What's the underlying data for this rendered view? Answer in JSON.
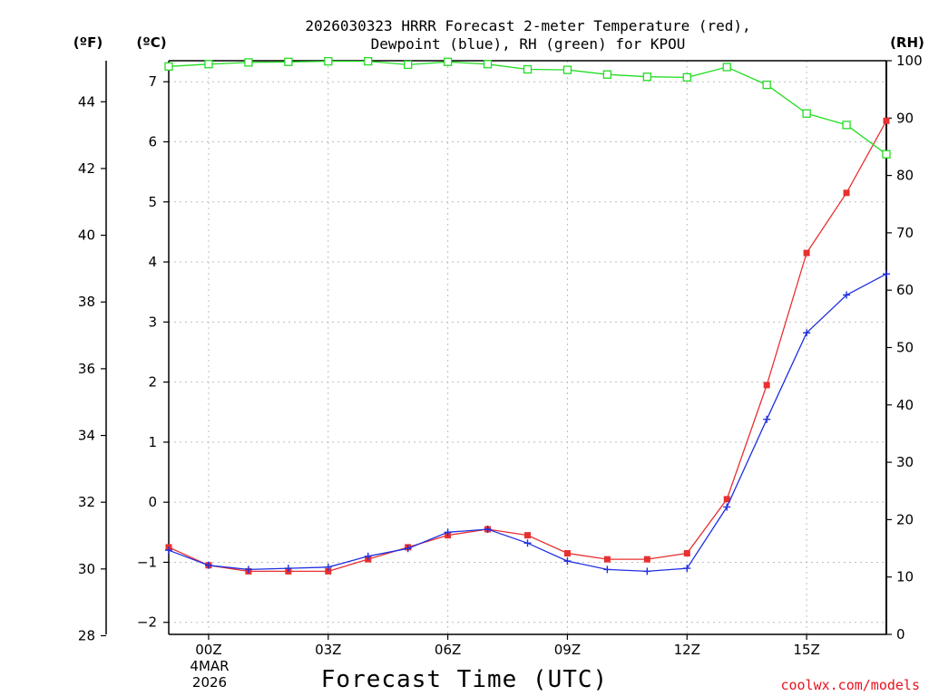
{
  "chart_data": {
    "type": "line",
    "title_line1": "2026030323 HRRR Forecast 2-meter Temperature (red),",
    "title_line2": "Dewpoint (blue), RH (green) for KPOU",
    "xlabel": "Forecast Time (UTC)",
    "credit": "coolwx.com/models",
    "date_label_line1": "4MAR",
    "date_label_line2": "2026",
    "units": {
      "fahrenheit": "(ºF)",
      "celsius": "(ºC)",
      "rh": "(RH)"
    },
    "x_hours": [
      -1,
      0,
      1,
      2,
      3,
      4,
      5,
      6,
      7,
      8,
      9,
      10,
      11,
      12,
      13,
      14,
      15,
      16,
      17
    ],
    "x_ticks": [
      {
        "hour": 0,
        "label": "00Z"
      },
      {
        "hour": 3,
        "label": "03Z"
      },
      {
        "hour": 6,
        "label": "06Z"
      },
      {
        "hour": 9,
        "label": "09Z"
      },
      {
        "hour": 12,
        "label": "12Z"
      },
      {
        "hour": 15,
        "label": "15Z"
      }
    ],
    "xlim": [
      -1,
      17
    ],
    "celsius_ylim": [
      -2.2,
      7.35
    ],
    "celsius_ticks": [
      -2,
      -1,
      0,
      1,
      2,
      3,
      4,
      5,
      6,
      7
    ],
    "fahrenheit_ticks": [
      28,
      30,
      32,
      34,
      36,
      38,
      40,
      42,
      44
    ],
    "rh_ylim": [
      0,
      100
    ],
    "rh_ticks": [
      0,
      10,
      20,
      30,
      40,
      50,
      60,
      70,
      80,
      90,
      100
    ],
    "series": [
      {
        "name": "Temperature",
        "color": "#e83030",
        "marker": "square",
        "values": [
          -0.75,
          -1.05,
          -1.15,
          -1.15,
          -1.15,
          -0.95,
          -0.75,
          -0.55,
          -0.45,
          -0.55,
          -0.85,
          -0.95,
          -0.95,
          -0.85,
          0.05,
          1.95,
          4.15,
          5.15,
          6.35
        ]
      },
      {
        "name": "Dewpoint",
        "color": "#2030e0",
        "marker": "plus",
        "values": [
          -0.8,
          -1.05,
          -1.12,
          -1.1,
          -1.08,
          -0.9,
          -0.77,
          -0.5,
          -0.45,
          -0.68,
          -0.98,
          -1.12,
          -1.15,
          -1.1,
          -0.08,
          1.38,
          2.82,
          3.45,
          3.8
        ]
      },
      {
        "name": "RH",
        "color": "#22dd22",
        "marker": "open-square",
        "values": [
          99,
          99.4,
          99.7,
          99.8,
          99.9,
          99.9,
          99.3,
          99.8,
          99.4,
          98.5,
          98.4,
          97.6,
          97.2,
          97.1,
          98.9,
          95.8,
          90.8,
          88.8,
          83.7
        ]
      }
    ]
  }
}
